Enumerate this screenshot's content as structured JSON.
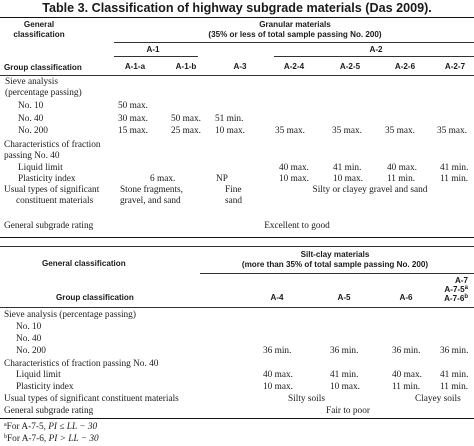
{
  "title": "Table 3.  Classification of highway subgrade materials (Das 2009).",
  "top": {
    "general_classification": [
      "General",
      "classification"
    ],
    "granular_header": [
      "Granular materials",
      "(35% or less of total sample passing No. 200)"
    ],
    "group_classification": "Group classification",
    "group_a1": "A-1",
    "group_a2": "A-2",
    "columns": [
      "A-1-a",
      "A-1-b",
      "A-3",
      "A-2-4",
      "A-2-5",
      "A-2-6",
      "A-2-7"
    ],
    "sieve_analysis": [
      "Sieve analysis",
      "(percentage passing)"
    ],
    "no10": {
      "label": "No. 10",
      "values": [
        "50 max.",
        "",
        "",
        "",
        "",
        "",
        ""
      ]
    },
    "no40": {
      "label": "No. 40",
      "values": [
        "30 max.",
        "50 max.",
        "51 min.",
        "",
        "",
        "",
        ""
      ]
    },
    "no200": {
      "label": "No. 200",
      "values": [
        "15 max.",
        "25 max.",
        "10 max.",
        "35 max.",
        "35 max.",
        "35 max.",
        "35 max."
      ]
    },
    "fraction_characteristics": [
      "Characteristics of fraction",
      "passing No. 40"
    ],
    "liquid_limit": {
      "label": "Liquid limit",
      "values": [
        "",
        "",
        "",
        "40 max.",
        "41 min.",
        "40 max.",
        "41 min."
      ]
    },
    "plasticity_index": {
      "label": "Plasticity index",
      "values": [
        "6 max.",
        "",
        "NP",
        "10 max.",
        "10 max.",
        "11 min.",
        "11 min."
      ]
    },
    "constituents_label": [
      "Usual types of significant",
      "constituent materials"
    ],
    "constituents_a1": [
      "Stone fragments,",
      "gravel, and sand"
    ],
    "constituents_a3": [
      "Fine",
      "sand"
    ],
    "constituents_a2": "Silty or clayey gravel and sand",
    "rating_label": "General subgrade rating",
    "rating_value": "Excellent to good"
  },
  "bottom": {
    "general_classification": "General classification",
    "siltclay_header": [
      "Silt-clay materials",
      "(more than 35% of total sample passing No. 200)"
    ],
    "group_classification": "Group classification",
    "columns": [
      "A-4",
      "A-5",
      "A-6"
    ],
    "a7_header": [
      "A-7",
      "A-7-5",
      "A-7-6"
    ],
    "a7_marks": [
      "a",
      "b"
    ],
    "sieve_analysis": "Sieve analysis (percentage passing)",
    "no10": "No. 10",
    "no40": "No. 40",
    "no200": {
      "label": "No. 200",
      "values": [
        "36 min.",
        "36 min.",
        "36 min.",
        "36 min."
      ]
    },
    "fraction_characteristics": "Characteristics of fraction passing No. 40",
    "liquid_limit": {
      "label": "Liquid limit",
      "values": [
        "40 max.",
        "41 min.",
        "40 max.",
        "41 min."
      ]
    },
    "plasticity_index": {
      "label": "Plasticity index",
      "values": [
        "10 max.",
        "10 max.",
        "11 min.",
        "11 min."
      ]
    },
    "constituents_label": "Usual types of significant constituent materials",
    "constituents_left": "Silty soils",
    "constituents_right": "Clayey soils",
    "rating_label": "General subgrade rating",
    "rating_value": "Fair to poor"
  },
  "footnotes": [
    {
      "mark": "a",
      "prefix": "For A-7-5, ",
      "formula": "PI ≤ LL − 30"
    },
    {
      "mark": "b",
      "prefix": "For A-7-6, ",
      "formula": "PI > LL − 30"
    }
  ]
}
